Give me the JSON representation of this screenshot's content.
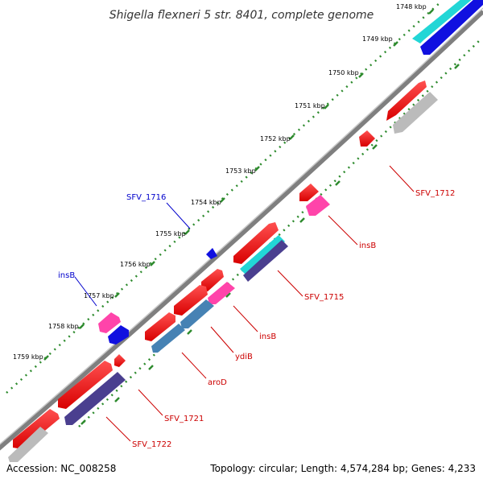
{
  "title": "Shigella flexneri 5 str. 8401, complete genome",
  "footer": {
    "accession": "Accession: NC_008258",
    "topology": "Topology: circular; Length: 4,574,284 bp; Genes: 4,233"
  },
  "ticks": [
    "1748 kbp",
    "1749 kbp",
    "1750 kbp",
    "1751 kbp",
    "1752 kbp",
    "1753 kbp",
    "1754 kbp",
    "1755 kbp",
    "1756 kbp",
    "1757 kbp",
    "1758 kbp",
    "1759 kbp"
  ],
  "gene_labels": {
    "sfv_1716": "SFV_1716",
    "insb_outer": "insB",
    "sfv_1712": "SFV_1712",
    "insb_1": "insB",
    "sfv_1715": "SFV_1715",
    "insb_2": "insB",
    "ydib": "ydiB",
    "arod": "aroD",
    "sfv_1721": "SFV_1721",
    "sfv_1722": "SFV_1722"
  },
  "colors": {
    "backbone": "#888888",
    "tick": "#2e8b2e",
    "forward_gene": "#ff0000",
    "forward_label": "#0000cc",
    "reverse_label": "#cc0000",
    "cyan": "#22d6d6",
    "blue": "#1010e0",
    "pink": "#ff44aa",
    "gray": "#bbbbbb",
    "steel": "#4682b4",
    "navy": "#4a3f8f"
  }
}
